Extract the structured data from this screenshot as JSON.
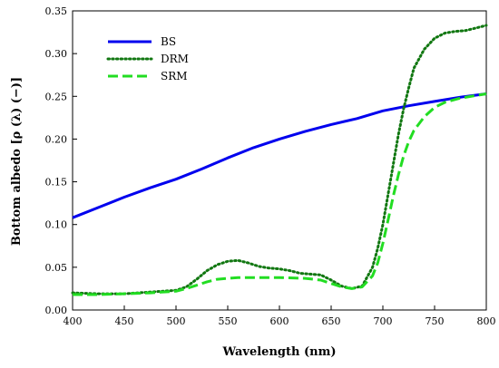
{
  "chart_data": {
    "type": "line",
    "title": "",
    "xlabel": "Wavelength (nm)",
    "ylabel": "Bottom albedo [ρ (λ) (−)]",
    "xlim": [
      400,
      800
    ],
    "ylim": [
      0.0,
      0.35
    ],
    "xticks": [
      400,
      450,
      500,
      550,
      600,
      650,
      700,
      750,
      800
    ],
    "yticks": [
      "0.00",
      "0.05",
      "0.10",
      "0.15",
      "0.20",
      "0.25",
      "0.30",
      "0.35"
    ],
    "grid": false,
    "legend_position": "top-left",
    "series": [
      {
        "name": "BS",
        "color": "#0000ee",
        "style": "solid",
        "x": [
          400,
          425,
          450,
          475,
          500,
          525,
          550,
          575,
          600,
          625,
          650,
          675,
          700,
          725,
          750,
          775,
          800
        ],
        "y": [
          0.108,
          0.12,
          0.132,
          0.143,
          0.153,
          0.165,
          0.178,
          0.19,
          0.2,
          0.209,
          0.217,
          0.224,
          0.233,
          0.239,
          0.244,
          0.249,
          0.253
        ]
      },
      {
        "name": "DRM",
        "color": "#117711",
        "style": "dotted",
        "x": [
          400,
          425,
          450,
          475,
          500,
          510,
          520,
          530,
          540,
          550,
          560,
          570,
          580,
          590,
          600,
          610,
          620,
          630,
          640,
          650,
          660,
          670,
          680,
          690,
          695,
          700,
          705,
          710,
          715,
          720,
          725,
          730,
          740,
          750,
          760,
          770,
          780,
          790,
          800
        ],
        "y": [
          0.02,
          0.019,
          0.019,
          0.021,
          0.023,
          0.027,
          0.036,
          0.046,
          0.053,
          0.057,
          0.058,
          0.055,
          0.051,
          0.049,
          0.048,
          0.046,
          0.043,
          0.042,
          0.041,
          0.035,
          0.028,
          0.025,
          0.028,
          0.05,
          0.072,
          0.1,
          0.135,
          0.17,
          0.205,
          0.235,
          0.26,
          0.283,
          0.305,
          0.318,
          0.324,
          0.326,
          0.327,
          0.33,
          0.333
        ]
      },
      {
        "name": "SRM",
        "color": "#22dd22",
        "style": "dashed",
        "x": [
          400,
          425,
          450,
          475,
          500,
          510,
          520,
          530,
          540,
          550,
          560,
          575,
          600,
          625,
          640,
          650,
          660,
          670,
          680,
          690,
          695,
          700,
          705,
          710,
          715,
          720,
          725,
          730,
          740,
          750,
          760,
          775,
          800
        ],
        "y": [
          0.018,
          0.018,
          0.019,
          0.02,
          0.022,
          0.025,
          0.029,
          0.033,
          0.036,
          0.037,
          0.038,
          0.038,
          0.038,
          0.037,
          0.035,
          0.031,
          0.027,
          0.025,
          0.027,
          0.04,
          0.055,
          0.078,
          0.105,
          0.133,
          0.158,
          0.18,
          0.197,
          0.21,
          0.226,
          0.237,
          0.243,
          0.248,
          0.253
        ]
      }
    ]
  }
}
